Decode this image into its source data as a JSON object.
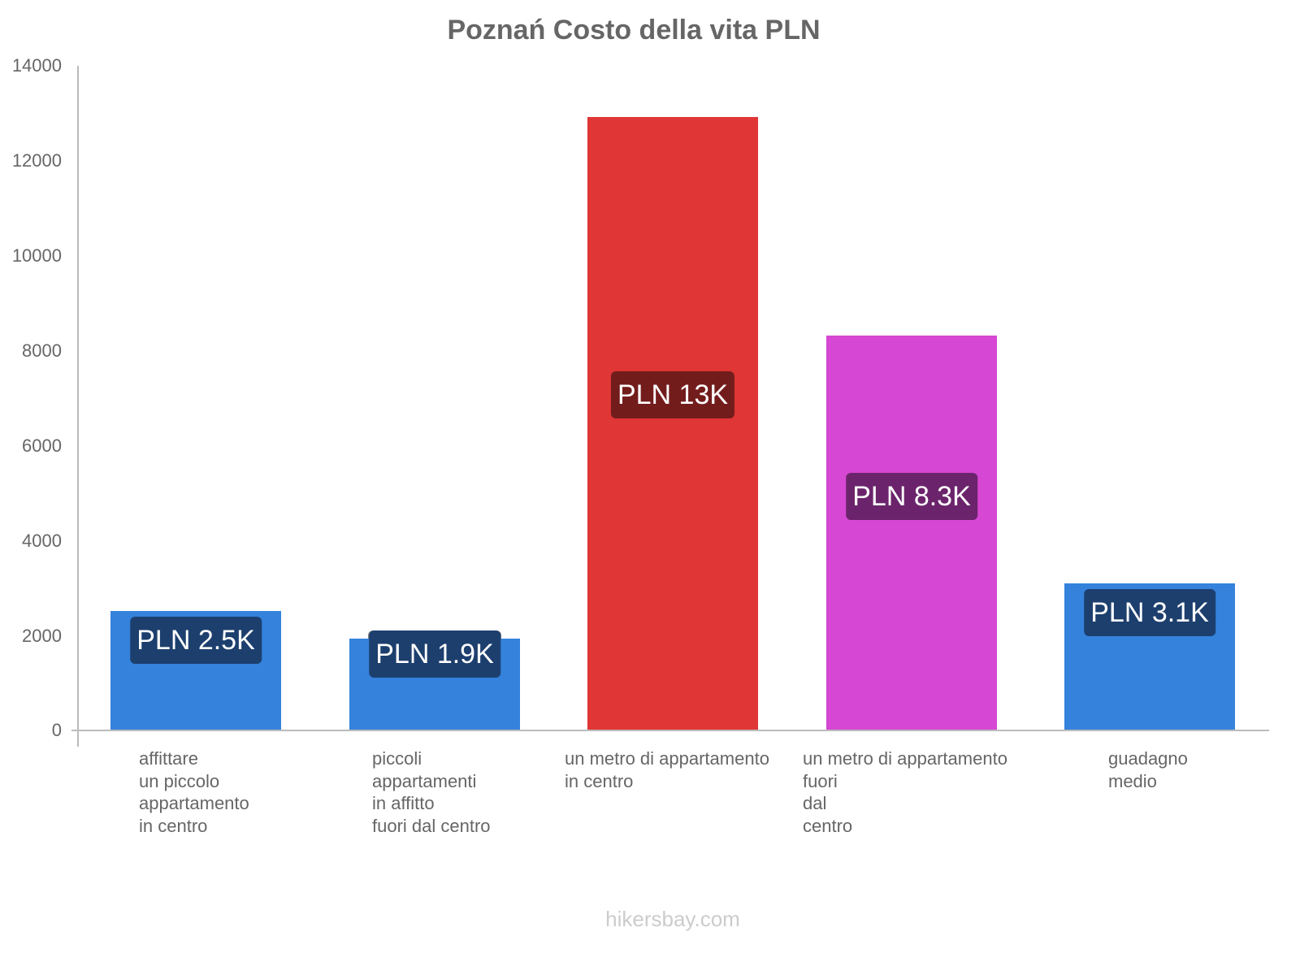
{
  "title": "Poznań Costo della vita PLN",
  "watermark": "hikersbay.com",
  "yaxis": {
    "ticks": [
      "14000",
      "12000",
      "10000",
      "8000",
      "6000",
      "4000",
      "2000",
      "0"
    ]
  },
  "bars": [
    {
      "label_lines": "affittare\nun piccolo\nappartamento\nin centro",
      "value_label": "PLN 2.5K",
      "color": "#3482dc",
      "label_bg": "#1d3f6e"
    },
    {
      "label_lines": "piccoli\nappartamenti\nin affitto\nfuori dal centro",
      "value_label": "PLN 1.9K",
      "color": "#3482dc",
      "label_bg": "#1d3f6e"
    },
    {
      "label_lines": "un metro di appartamento\nin centro",
      "value_label": "PLN 13K",
      "color": "#e03636",
      "label_bg": "#731c1c"
    },
    {
      "label_lines": "un metro di appartamento\nfuori\ndal\ncentro",
      "value_label": "PLN 8.3K",
      "color": "#d647d3",
      "label_bg": "#6b246b"
    },
    {
      "label_lines": "guadagno\nmedio",
      "value_label": "PLN 3.1K",
      "color": "#3482dc",
      "label_bg": "#1d3f6e"
    }
  ],
  "chart_data": {
    "type": "bar",
    "title": "Poznań Costo della vita PLN",
    "xlabel": "",
    "ylabel": "",
    "ylim": [
      0,
      14000
    ],
    "yticks": [
      0,
      2000,
      4000,
      6000,
      8000,
      10000,
      12000,
      14000
    ],
    "grid": false,
    "legend": null,
    "categories": [
      "affittare un piccolo appartamento in centro",
      "piccoli appartamenti in affitto fuori dal centro",
      "un metro di appartamento in centro",
      "un metro di appartamento fuori dal centro",
      "guadagno medio"
    ],
    "values": [
      2516,
      1934,
      12921,
      8318,
      3098
    ],
    "data_labels": [
      "PLN 2.5K",
      "PLN 1.9K",
      "PLN 13K",
      "PLN 8.3K",
      "PLN 3.1K"
    ],
    "colors": [
      "#3482dc",
      "#3482dc",
      "#e03636",
      "#d647d3",
      "#3482dc"
    ]
  }
}
